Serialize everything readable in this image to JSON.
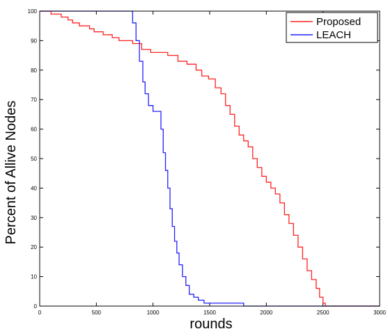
{
  "chart_data": {
    "type": "line",
    "title": "",
    "xlabel": "rounds",
    "ylabel": "Percent of Allive Nodes",
    "xlim": [
      0,
      3000
    ],
    "ylim": [
      0,
      100
    ],
    "xticks": [
      "0",
      "500",
      "1000",
      "1500",
      "2000",
      "2500",
      "3000"
    ],
    "yticks": [
      "0",
      "10",
      "20",
      "30",
      "40",
      "50",
      "60",
      "70",
      "80",
      "90",
      "100"
    ],
    "grid": false,
    "legend_position": "top-right",
    "series": [
      {
        "name": "Proposed",
        "color": "#ff2020",
        "x": [
          0,
          100,
          190,
          250,
          290,
          350,
          440,
          480,
          560,
          640,
          700,
          820,
          900,
          980,
          1060,
          1130,
          1220,
          1300,
          1380,
          1430,
          1490,
          1550,
          1600,
          1640,
          1680,
          1720,
          1760,
          1800,
          1840,
          1880,
          1920,
          1960,
          2000,
          2040,
          2080,
          2120,
          2160,
          2200,
          2240,
          2280,
          2320,
          2360,
          2400,
          2440,
          2470,
          2500,
          2520,
          2600,
          2800,
          3000
        ],
        "y": [
          100,
          99,
          98,
          97,
          96,
          95,
          94,
          93,
          92,
          91,
          90,
          89,
          87,
          86,
          86,
          85,
          83,
          82,
          80,
          78,
          77,
          74,
          72,
          68,
          65,
          61,
          58,
          56,
          54,
          50,
          47,
          44,
          42,
          40,
          38,
          35,
          31,
          28,
          24,
          20,
          16,
          12,
          9,
          6,
          3,
          1,
          0,
          0,
          0,
          0
        ]
      },
      {
        "name": "LEACH",
        "color": "#2020ff",
        "x": [
          0,
          300,
          600,
          790,
          820,
          850,
          880,
          910,
          930,
          960,
          1000,
          1050,
          1070,
          1090,
          1110,
          1130,
          1150,
          1170,
          1190,
          1210,
          1230,
          1260,
          1290,
          1320,
          1360,
          1400,
          1450,
          1500,
          1600,
          1720,
          1780,
          1800,
          2000,
          2500,
          3000
        ],
        "y": [
          100,
          100,
          100,
          100,
          96,
          90,
          83,
          76,
          72,
          68,
          66,
          66,
          60,
          52,
          46,
          40,
          33,
          27,
          22,
          18,
          14,
          10,
          7,
          4,
          3,
          2,
          1,
          1,
          1,
          1,
          1,
          0,
          0,
          0,
          0
        ]
      }
    ]
  }
}
